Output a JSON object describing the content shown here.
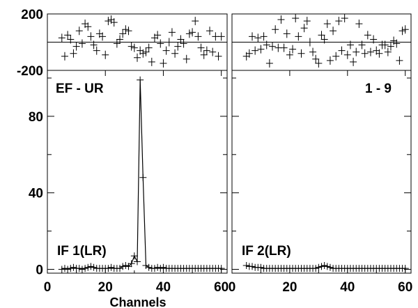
{
  "chart_data": {
    "type": "line",
    "xlabel": "Channels",
    "xlim": [
      0,
      62
    ],
    "x_ticks": [
      "0",
      "20",
      "40",
      "60"
    ],
    "phase_panel": {
      "ylim": [
        -200,
        200
      ],
      "y_ticks": [
        "200",
        "-200"
      ],
      "ylabel": "",
      "reference_lines": [
        0
      ]
    },
    "amp_panel": {
      "ylim": [
        -2,
        104
      ],
      "y_ticks": [
        "0",
        "40",
        "80"
      ],
      "ylabel": ""
    },
    "panels": [
      {
        "baseline_label": "EF - UR",
        "if_label": "IF 1(LR)",
        "phase": {
          "x": [
            5,
            6,
            7,
            8,
            9,
            10,
            11,
            12,
            13,
            14,
            15,
            16,
            17,
            18,
            19,
            20,
            21,
            22,
            23,
            24,
            25,
            26,
            27,
            28,
            29,
            30,
            31,
            32,
            33,
            34,
            35,
            36,
            37,
            38,
            39,
            40,
            41,
            42,
            43,
            44,
            45,
            46,
            47,
            48,
            49,
            50,
            51,
            52,
            53,
            54,
            55,
            56,
            57,
            58,
            59,
            60
          ],
          "y": [
            30,
            -100,
            50,
            20,
            -80,
            -30,
            80,
            -10,
            130,
            110,
            40,
            -20,
            -60,
            60,
            40,
            -90,
            150,
            160,
            140,
            -10,
            20,
            60,
            90,
            80,
            -30,
            -40,
            -110,
            -60,
            -80,
            -70,
            -40,
            -140,
            30,
            50,
            -10,
            -150,
            -60,
            0,
            70,
            -80,
            -30,
            20,
            -10,
            -120,
            60,
            70,
            150,
            40,
            -40,
            -90,
            -60,
            80,
            -70,
            40,
            -100,
            40
          ]
        },
        "amplitude": {
          "x": [
            5,
            6,
            7,
            8,
            9,
            10,
            11,
            12,
            13,
            14,
            15,
            16,
            17,
            18,
            19,
            20,
            21,
            22,
            23,
            24,
            25,
            26,
            27,
            28,
            29,
            30,
            31,
            32,
            33,
            34,
            35,
            36,
            37,
            38,
            39,
            40,
            41,
            42,
            43,
            44,
            45,
            46,
            47,
            48,
            49,
            50,
            51,
            52,
            53,
            54,
            55,
            56,
            57,
            58,
            59,
            60
          ],
          "y": [
            0,
            0.5,
            0,
            0.5,
            1,
            0.5,
            0.5,
            0,
            0.5,
            1,
            1.5,
            1,
            0.5,
            0.5,
            0.5,
            0.5,
            0.5,
            1,
            0.5,
            0.5,
            0.5,
            1.5,
            2,
            1.5,
            3,
            7,
            4,
            99,
            48,
            2,
            1,
            0.5,
            0.5,
            1,
            0.5,
            1,
            0.5,
            0.5,
            0.5,
            0.5,
            0.5,
            0.5,
            0.5,
            0.5,
            0.5,
            0.5,
            0.5,
            0.5,
            0.5,
            0.5,
            0.5,
            0.5,
            0.5,
            0.5,
            0.5,
            0.5
          ]
        }
      },
      {
        "baseline_label": "1 - 9",
        "if_label": "IF 2(LR)",
        "phase": {
          "x": [
            5,
            6,
            7,
            8,
            9,
            10,
            11,
            12,
            13,
            14,
            15,
            16,
            17,
            18,
            19,
            20,
            21,
            22,
            23,
            24,
            25,
            26,
            27,
            28,
            29,
            30,
            31,
            32,
            33,
            34,
            35,
            36,
            37,
            38,
            39,
            40,
            41,
            42,
            43,
            44,
            45,
            46,
            47,
            48,
            49,
            50,
            51,
            52,
            53,
            54,
            55,
            56,
            57,
            58,
            59,
            60
          ],
          "y": [
            -100,
            -80,
            40,
            -60,
            30,
            -50,
            40,
            -20,
            -150,
            -30,
            90,
            -40,
            160,
            -40,
            60,
            -90,
            -50,
            170,
            40,
            -80,
            100,
            150,
            0,
            -70,
            -120,
            -150,
            50,
            20,
            130,
            -130,
            80,
            -100,
            150,
            -60,
            170,
            -90,
            -20,
            -140,
            -70,
            130,
            -20,
            -80,
            50,
            -70,
            20,
            -60,
            -80,
            -20,
            -20,
            -70,
            -30,
            10,
            -10,
            -130,
            80,
            90
          ]
        },
        "amplitude": {
          "x": [
            5,
            6,
            7,
            8,
            9,
            10,
            11,
            12,
            13,
            14,
            15,
            16,
            17,
            18,
            19,
            20,
            21,
            22,
            23,
            24,
            25,
            26,
            27,
            28,
            29,
            30,
            31,
            32,
            33,
            34,
            35,
            36,
            37,
            38,
            39,
            40,
            41,
            42,
            43,
            44,
            45,
            46,
            47,
            48,
            49,
            50,
            51,
            52,
            53,
            54,
            55,
            56,
            57,
            58,
            59,
            60
          ],
          "y": [
            2,
            1.5,
            1.5,
            1,
            1,
            1,
            0.5,
            0.5,
            0.5,
            0.5,
            0.5,
            0.5,
            0.5,
            0.5,
            0.5,
            0.5,
            0.5,
            0.5,
            0.5,
            0.5,
            0.5,
            0.5,
            0.5,
            0.5,
            0.5,
            1,
            1.5,
            2,
            1.5,
            1,
            0.5,
            0.5,
            0.5,
            0.5,
            0.5,
            0.5,
            0.5,
            0.5,
            0.5,
            0.5,
            0.5,
            0.5,
            0.5,
            0.5,
            0.5,
            0.5,
            0.5,
            0.5,
            0.5,
            0.5,
            0.5,
            0.5,
            0.5,
            0.5,
            0.5,
            0.5
          ]
        }
      }
    ]
  }
}
